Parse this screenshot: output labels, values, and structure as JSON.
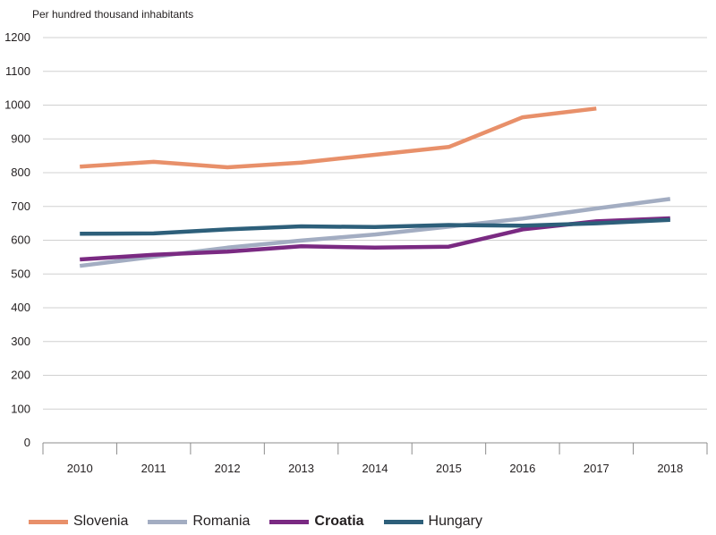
{
  "chart_data": {
    "type": "line",
    "unit_label": "Per hundred thousand inhabitants",
    "categories": [
      "2010",
      "2011",
      "2012",
      "2013",
      "2014",
      "2015",
      "2016",
      "2017",
      "2018"
    ],
    "ylim": [
      0,
      1200
    ],
    "yticks": [
      0,
      100,
      200,
      300,
      400,
      500,
      600,
      700,
      800,
      900,
      1000,
      1100,
      1200
    ],
    "grid": "horizontal",
    "legend_position": "bottom",
    "series": [
      {
        "name": "Slovenia",
        "color": "#e8906a",
        "bold": false,
        "values": [
          818,
          832,
          816,
          830,
          853,
          876,
          964,
          990,
          null
        ]
      },
      {
        "name": "Romania",
        "color": "#a3adc2",
        "bold": false,
        "values": [
          524,
          551,
          578,
          599,
          617,
          640,
          664,
          694,
          722
        ]
      },
      {
        "name": "Croatia",
        "color": "#7a2a82",
        "bold": true,
        "values": [
          543,
          557,
          566,
          582,
          578,
          581,
          632,
          656,
          665
        ]
      },
      {
        "name": "Hungary",
        "color": "#2d5f7a",
        "bold": false,
        "values": [
          619,
          620,
          632,
          641,
          639,
          645,
          643,
          650,
          660
        ]
      }
    ]
  }
}
